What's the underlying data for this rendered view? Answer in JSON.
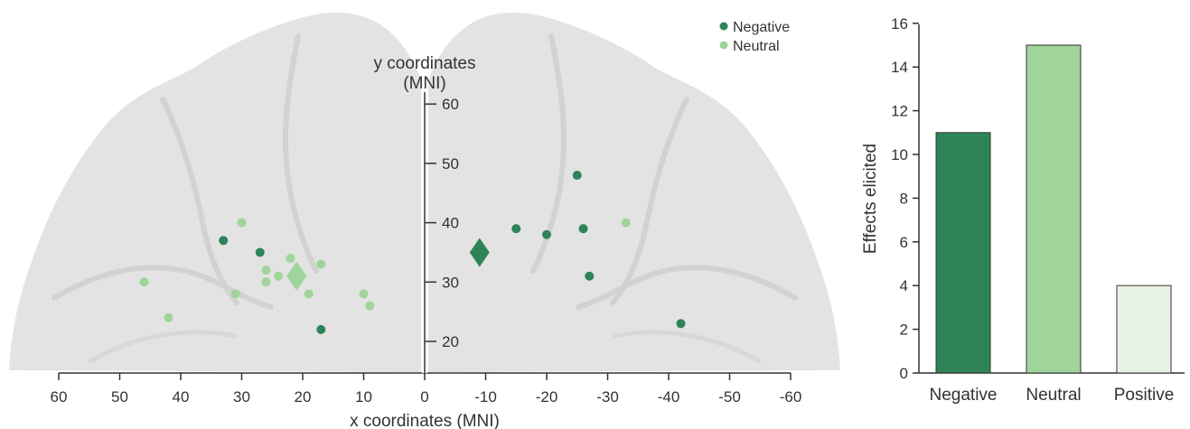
{
  "colors": {
    "negative": "#2e8456",
    "neutral": "#9fd49a",
    "positive": "#e8f3e3",
    "axis": "#333333",
    "brain": "#e3e3e3"
  },
  "chart_data": [
    {
      "type": "scatter",
      "title": "",
      "xlabel": "x coordinates (MNI)",
      "ylabel": "y coordinates\n(MNI)",
      "xlim": [
        60,
        -60
      ],
      "ylim": [
        15,
        63
      ],
      "x_ticks": [
        60,
        50,
        40,
        30,
        20,
        10,
        0,
        -10,
        -20,
        -30,
        -40,
        -50,
        -60
      ],
      "y_ticks": [
        20,
        30,
        40,
        50,
        60
      ],
      "legend": {
        "placement": "top-right",
        "entries": [
          "Negative",
          "Neutral"
        ]
      },
      "series": [
        {
          "name": "Negative",
          "points": [
            {
              "x": 33,
              "y": 37
            },
            {
              "x": 27,
              "y": 35
            },
            {
              "x": 17,
              "y": 22
            },
            {
              "x": -15,
              "y": 39
            },
            {
              "x": -20,
              "y": 38
            },
            {
              "x": -25,
              "y": 48
            },
            {
              "x": -26,
              "y": 39
            },
            {
              "x": -27,
              "y": 31
            },
            {
              "x": -42,
              "y": 23
            }
          ],
          "mean": {
            "x": -9,
            "y": 35
          }
        },
        {
          "name": "Neutral",
          "points": [
            {
              "x": 46,
              "y": 30
            },
            {
              "x": 42,
              "y": 24
            },
            {
              "x": 30,
              "y": 40
            },
            {
              "x": 31,
              "y": 28
            },
            {
              "x": 26,
              "y": 32
            },
            {
              "x": 26,
              "y": 30
            },
            {
              "x": 24,
              "y": 31
            },
            {
              "x": 22,
              "y": 34
            },
            {
              "x": 17,
              "y": 33
            },
            {
              "x": 19,
              "y": 28
            },
            {
              "x": 10,
              "y": 28
            },
            {
              "x": 9,
              "y": 26
            },
            {
              "x": -33,
              "y": 40
            }
          ],
          "mean": {
            "x": 21,
            "y": 31
          }
        }
      ]
    },
    {
      "type": "bar",
      "title": "",
      "xlabel": "",
      "ylabel": "Effects elicited",
      "categories": [
        "Negative",
        "Neutral",
        "Positive"
      ],
      "values": [
        11,
        15,
        4
      ],
      "ylim": [
        0,
        16
      ],
      "y_ticks": [
        0,
        2,
        4,
        6,
        8,
        10,
        12,
        14,
        16
      ]
    }
  ]
}
